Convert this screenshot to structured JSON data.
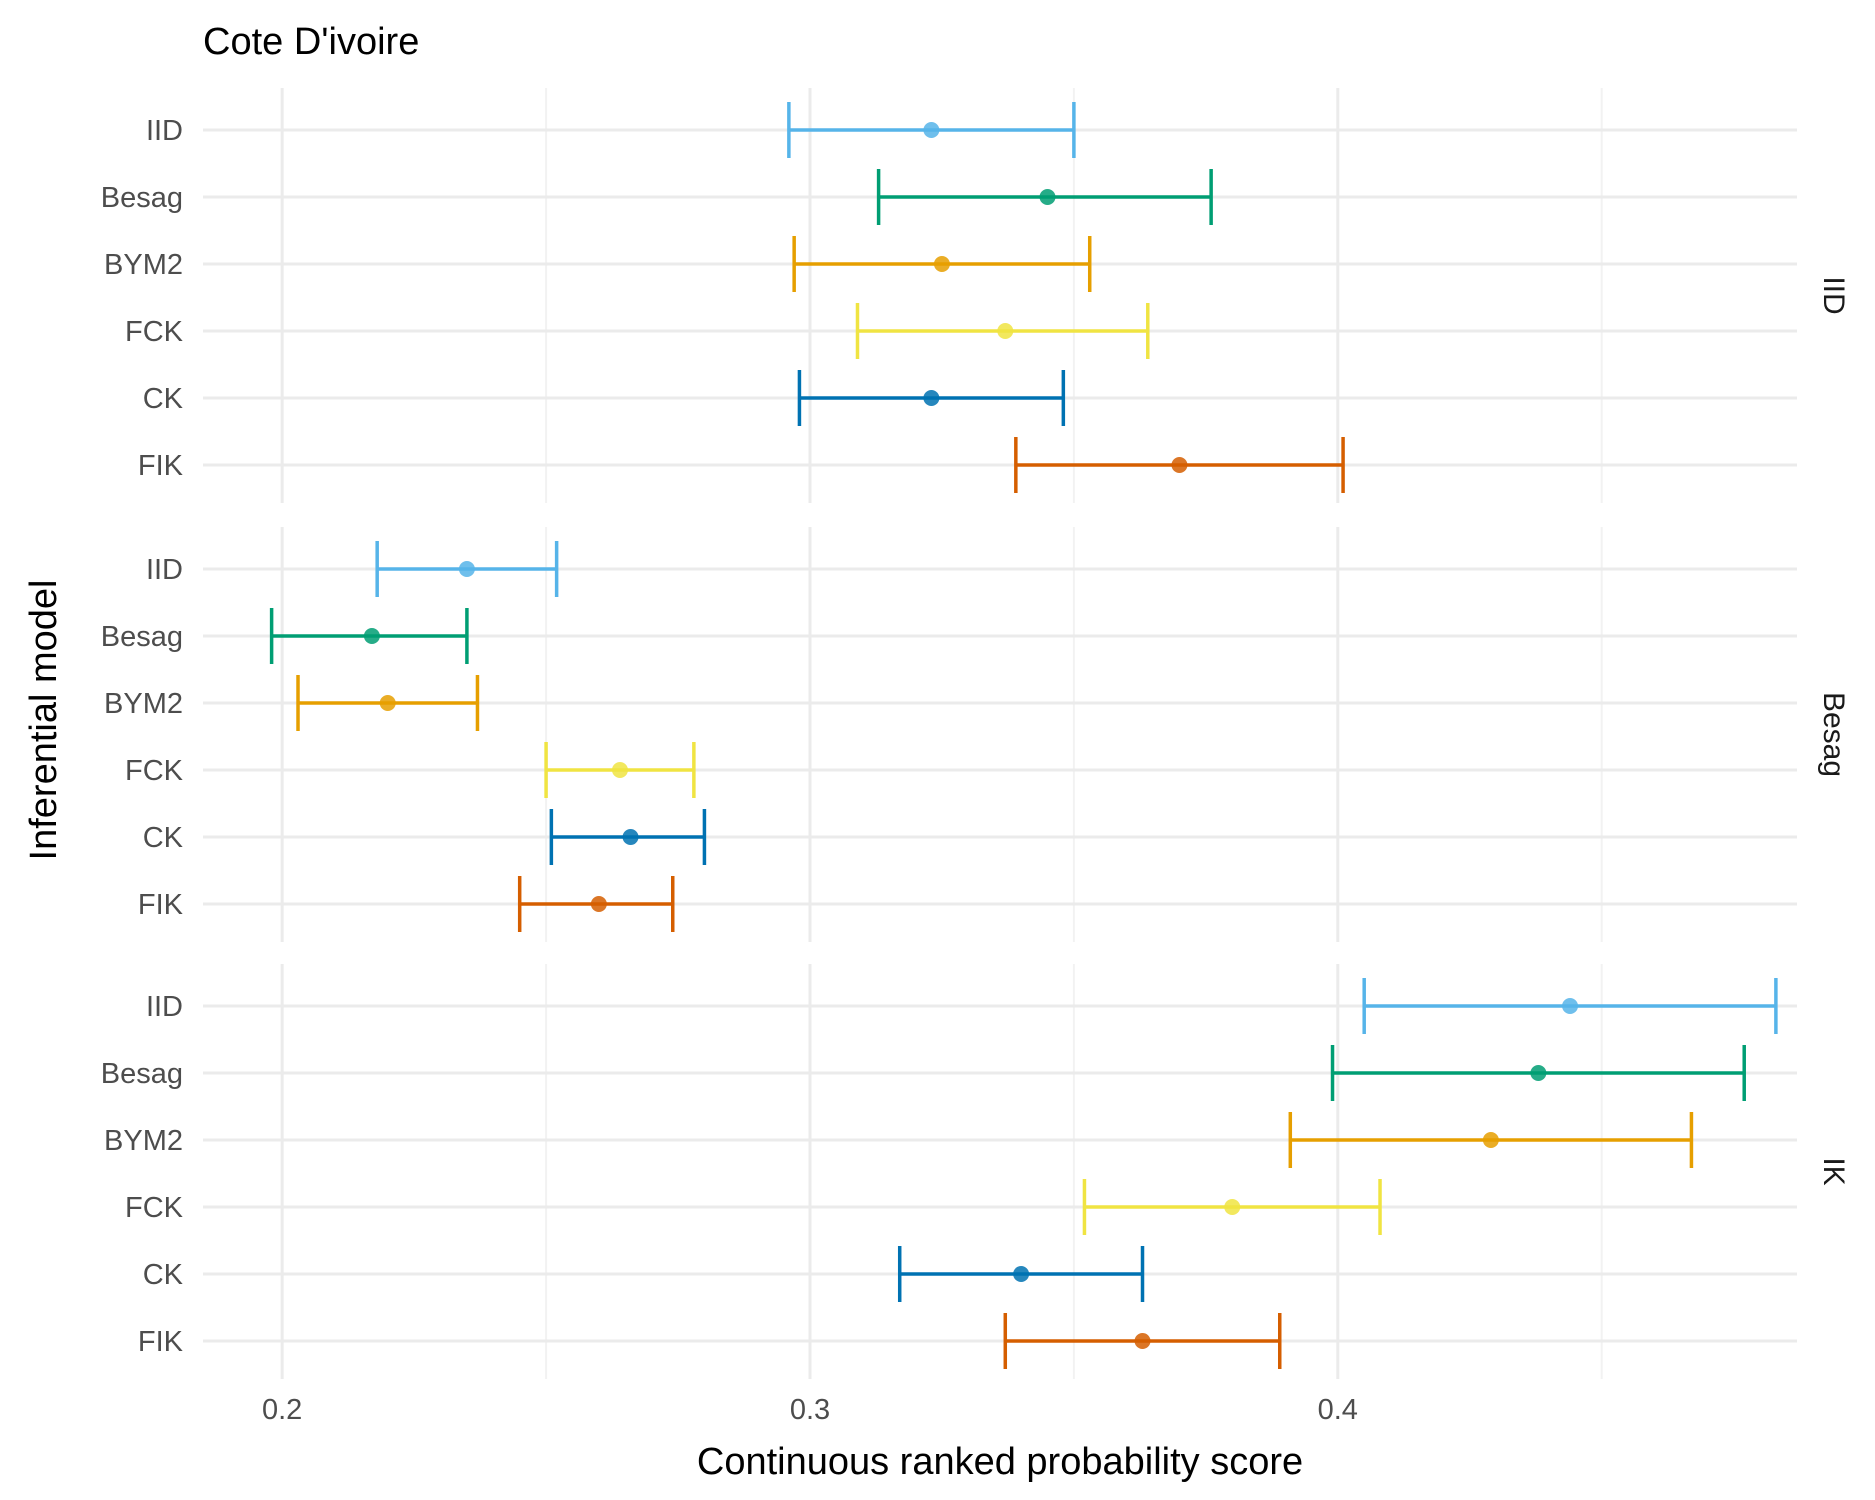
{
  "chart_data": {
    "type": "errorbar",
    "title": "Cote D'ivoire",
    "xlabel": "Continuous ranked probability score",
    "ylabel": "Inferential model",
    "xlim": [
      0.185,
      0.487
    ],
    "x_ticks": [
      0.2,
      0.3,
      0.4
    ],
    "x_tick_labels": [
      "0.2",
      "0.3",
      "0.4"
    ],
    "grid": true,
    "legend": "none",
    "models": [
      "IID",
      "Besag",
      "BYM2",
      "FCK",
      "CK",
      "FIK"
    ],
    "colors": {
      "IID": "#56B4E9",
      "Besag": "#009E73",
      "BYM2": "#E69F00",
      "FCK": "#F0E442",
      "CK": "#0072B2",
      "FIK": "#D55E00"
    },
    "panels": [
      {
        "facet": "IID",
        "points": [
          {
            "model": "IID",
            "lower": 0.296,
            "estimate": 0.323,
            "upper": 0.35
          },
          {
            "model": "Besag",
            "lower": 0.313,
            "estimate": 0.345,
            "upper": 0.376
          },
          {
            "model": "BYM2",
            "lower": 0.297,
            "estimate": 0.325,
            "upper": 0.353
          },
          {
            "model": "FCK",
            "lower": 0.309,
            "estimate": 0.337,
            "upper": 0.364
          },
          {
            "model": "CK",
            "lower": 0.298,
            "estimate": 0.323,
            "upper": 0.348
          },
          {
            "model": "FIK",
            "lower": 0.339,
            "estimate": 0.37,
            "upper": 0.401
          }
        ]
      },
      {
        "facet": "Besag",
        "points": [
          {
            "model": "IID",
            "lower": 0.218,
            "estimate": 0.235,
            "upper": 0.252
          },
          {
            "model": "Besag",
            "lower": 0.198,
            "estimate": 0.217,
            "upper": 0.235
          },
          {
            "model": "BYM2",
            "lower": 0.203,
            "estimate": 0.22,
            "upper": 0.237
          },
          {
            "model": "FCK",
            "lower": 0.25,
            "estimate": 0.264,
            "upper": 0.278
          },
          {
            "model": "CK",
            "lower": 0.251,
            "estimate": 0.266,
            "upper": 0.28
          },
          {
            "model": "FIK",
            "lower": 0.245,
            "estimate": 0.26,
            "upper": 0.274
          }
        ]
      },
      {
        "facet": "IK",
        "points": [
          {
            "model": "IID",
            "lower": 0.405,
            "estimate": 0.444,
            "upper": 0.483
          },
          {
            "model": "Besag",
            "lower": 0.399,
            "estimate": 0.438,
            "upper": 0.477
          },
          {
            "model": "BYM2",
            "lower": 0.391,
            "estimate": 0.429,
            "upper": 0.467
          },
          {
            "model": "FCK",
            "lower": 0.352,
            "estimate": 0.38,
            "upper": 0.408
          },
          {
            "model": "CK",
            "lower": 0.317,
            "estimate": 0.34,
            "upper": 0.363
          },
          {
            "model": "FIK",
            "lower": 0.337,
            "estimate": 0.363,
            "upper": 0.389
          }
        ]
      }
    ]
  }
}
